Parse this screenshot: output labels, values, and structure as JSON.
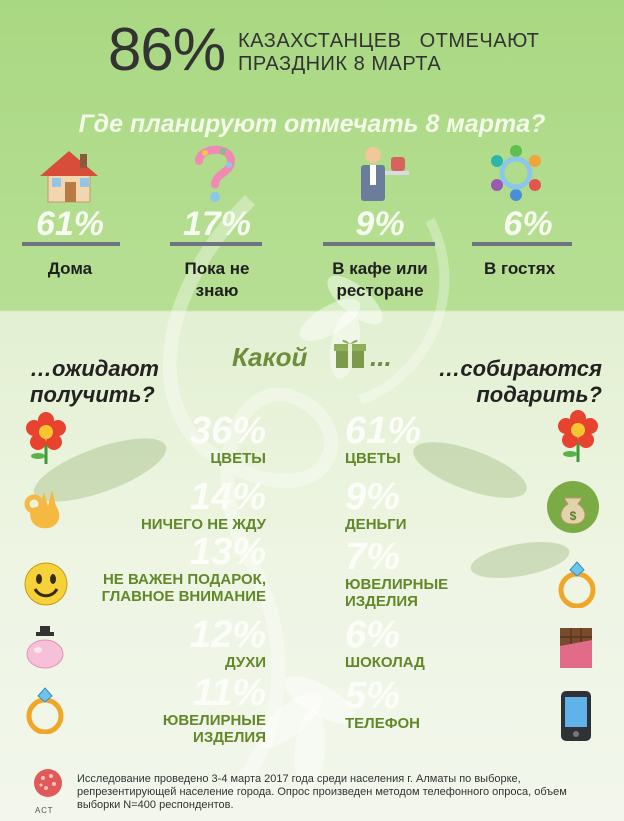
{
  "headline": {
    "percent": "86%",
    "line1": "КАЗАХСТАНЦЕВ   ОТМЕЧАЮТ",
    "line2": "ПРАЗДНИК 8 МАРТА"
  },
  "places": {
    "question": "Где планируют отмечать 8 марта?",
    "items": [
      {
        "percent": "61%",
        "label": "Дома",
        "icon": "house-icon"
      },
      {
        "percent": "17%",
        "label": "Пока не знаю",
        "icon": "question-mark-icon"
      },
      {
        "percent": "9%",
        "label": "В кафе или ресторане",
        "icon": "waiter-icon"
      },
      {
        "percent": "6%",
        "label": "В гостях",
        "icon": "people-circle-icon"
      }
    ]
  },
  "gifts": {
    "middle_title": "Какой",
    "middle_suffix": "...",
    "left_title_line1": "…ожидают",
    "left_title_line2": "получить?",
    "right_title_line1": "…собираются",
    "right_title_line2": "подарить?",
    "expect": [
      {
        "percent": "36%",
        "label": "ЦВЕТЫ",
        "icon": "flower-icon"
      },
      {
        "percent": "14%",
        "label": "НИЧЕГО НЕ ЖДУ",
        "icon": "ok-hand-icon"
      },
      {
        "percent": "13%",
        "label_line1": "НЕ ВАЖЕН ПОДАРОК,",
        "label_line2": "ГЛАВНОЕ ВНИМАНИЕ",
        "icon": "smiley-icon"
      },
      {
        "percent": "12%",
        "label": "ДУХИ",
        "icon": "perfume-icon"
      },
      {
        "percent": "11%",
        "label_line1": "ЮВЕЛИРНЫЕ",
        "label_line2": "ИЗДЕЛИЯ",
        "icon": "ring-icon"
      }
    ],
    "give": [
      {
        "percent": "61%",
        "label": "ЦВЕТЫ",
        "icon": "flower-icon"
      },
      {
        "percent": "9%",
        "label": "ДЕНЬГИ",
        "icon": "money-bag-icon"
      },
      {
        "percent": "7%",
        "label_line1": "ЮВЕЛИРНЫЕ",
        "label_line2": "ИЗДЕЛИЯ",
        "icon": "ring-icon"
      },
      {
        "percent": "6%",
        "label": "ШОКОЛАД",
        "icon": "chocolate-icon"
      },
      {
        "percent": "5%",
        "label": "ТЕЛЕФОН",
        "icon": "phone-icon"
      }
    ]
  },
  "footer": {
    "text": "Исследование проведено 3-4 марта 2017 года среди населения г. Алматы по выборке, репрезентирующей население города. Опрос произведен методом телефонного опроса, объем выборки N=400 респондентов.",
    "logo_text": "АСТ"
  },
  "colors": {
    "top_bg": "#b0db8a",
    "bottom_bg": "#eef5e3",
    "accent_green": "#63882a",
    "divider": "#6f7480"
  }
}
